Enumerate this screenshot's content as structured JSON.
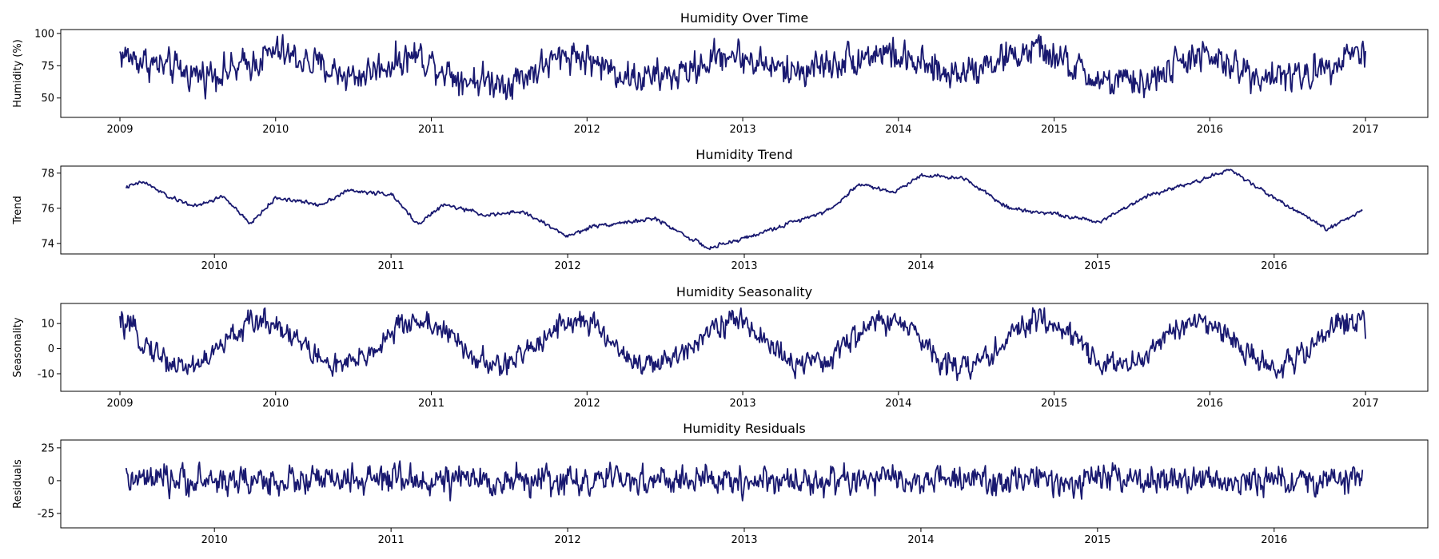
{
  "colors": {
    "line": "#191970",
    "axis": "#000000",
    "background": "#ffffff"
  },
  "chart_data": [
    {
      "type": "line",
      "title": "Humidity Over Time",
      "ylabel": "Humidity (%)",
      "xlabel": "",
      "x_ticks": [
        "2009",
        "2010",
        "2011",
        "2012",
        "2013",
        "2014",
        "2015",
        "2016",
        "2017"
      ],
      "y_ticks": [
        50,
        75,
        100
      ],
      "xlim": [
        2008.62,
        2017.4
      ],
      "ylim": [
        35,
        103
      ],
      "grid": false,
      "series": [
        {
          "x_start": 2009.0,
          "x_end": 2017.0,
          "keypoints": [
            [
              2009.0,
              84
            ],
            [
              2009.25,
              75
            ],
            [
              2009.5,
              68
            ],
            [
              2009.75,
              72
            ],
            [
              2010.0,
              86
            ],
            [
              2010.5,
              66
            ],
            [
              2010.9,
              84
            ],
            [
              2011.2,
              65
            ],
            [
              2011.5,
              62
            ],
            [
              2011.9,
              85
            ],
            [
              2012.3,
              65
            ],
            [
              2012.6,
              68
            ],
            [
              2012.9,
              85
            ],
            [
              2013.3,
              70
            ],
            [
              2013.9,
              86
            ],
            [
              2014.3,
              68
            ],
            [
              2014.9,
              88
            ],
            [
              2015.3,
              62
            ],
            [
              2015.6,
              62
            ],
            [
              2015.9,
              84
            ],
            [
              2016.3,
              68
            ],
            [
              2016.6,
              66
            ],
            [
              2016.9,
              86
            ],
            [
              2017.0,
              84
            ]
          ],
          "noise": 9,
          "range": [
            38,
            100
          ]
        }
      ]
    },
    {
      "type": "line",
      "title": "Humidity Trend",
      "ylabel": "Trend",
      "xlabel": "",
      "x_ticks": [
        "2010",
        "2011",
        "2012",
        "2013",
        "2014",
        "2015",
        "2016"
      ],
      "y_ticks": [
        74,
        76,
        78
      ],
      "xlim": [
        2009.13,
        2016.87
      ],
      "ylim": [
        73.4,
        78.4
      ],
      "grid": false,
      "series": [
        {
          "x_start": 2009.5,
          "x_end": 2016.5,
          "keypoints": [
            [
              2009.5,
              77.2
            ],
            [
              2009.6,
              77.5
            ],
            [
              2009.75,
              76.6
            ],
            [
              2009.9,
              76.1
            ],
            [
              2010.05,
              76.7
            ],
            [
              2010.2,
              75.1
            ],
            [
              2010.35,
              76.6
            ],
            [
              2010.6,
              76.2
            ],
            [
              2010.75,
              77.0
            ],
            [
              2011.0,
              76.8
            ],
            [
              2011.15,
              75.1
            ],
            [
              2011.3,
              76.2
            ],
            [
              2011.55,
              75.6
            ],
            [
              2011.75,
              75.8
            ],
            [
              2012.0,
              74.4
            ],
            [
              2012.15,
              75.0
            ],
            [
              2012.5,
              75.4
            ],
            [
              2012.8,
              73.7
            ],
            [
              2013.1,
              74.6
            ],
            [
              2013.5,
              76.0
            ],
            [
              2013.65,
              77.4
            ],
            [
              2013.85,
              76.9
            ],
            [
              2014.0,
              77.9
            ],
            [
              2014.25,
              77.7
            ],
            [
              2014.5,
              76.0
            ],
            [
              2014.75,
              75.7
            ],
            [
              2015.0,
              75.2
            ],
            [
              2015.3,
              76.8
            ],
            [
              2015.55,
              77.5
            ],
            [
              2015.75,
              78.2
            ],
            [
              2016.0,
              76.6
            ],
            [
              2016.3,
              74.8
            ],
            [
              2016.5,
              75.9
            ]
          ],
          "noise": 0.08,
          "range": [
            73.6,
            78.2
          ]
        }
      ]
    },
    {
      "type": "line",
      "title": "Humidity Seasonality",
      "ylabel": "Seasonality",
      "xlabel": "",
      "x_ticks": [
        "2009",
        "2010",
        "2011",
        "2012",
        "2013",
        "2014",
        "2015",
        "2016",
        "2017"
      ],
      "y_ticks": [
        -10,
        0,
        10
      ],
      "xlim": [
        2008.62,
        2017.4
      ],
      "ylim": [
        -17,
        18
      ],
      "grid": false,
      "series": [
        {
          "x_start": 2009.0,
          "x_end": 2017.0,
          "seasonal": {
            "amplitude": 9,
            "phase_peak": 0.92,
            "offset": 2
          },
          "noise": 3.5,
          "range": [
            -15.5,
            16.5
          ]
        }
      ]
    },
    {
      "type": "line",
      "title": "Humidity Residuals",
      "ylabel": "Residuals",
      "xlabel": "",
      "x_ticks": [
        "2010",
        "2011",
        "2012",
        "2013",
        "2014",
        "2015",
        "2016"
      ],
      "y_ticks": [
        -25,
        0,
        25
      ],
      "xlim": [
        2009.13,
        2016.87
      ],
      "ylim": [
        -36,
        31
      ],
      "grid": false,
      "series": [
        {
          "x_start": 2009.5,
          "x_end": 2016.5,
          "keypoints": [
            [
              2009.5,
              0
            ],
            [
              2016.5,
              0
            ]
          ],
          "noise": 8,
          "range": [
            -33,
            26
          ]
        }
      ]
    }
  ]
}
